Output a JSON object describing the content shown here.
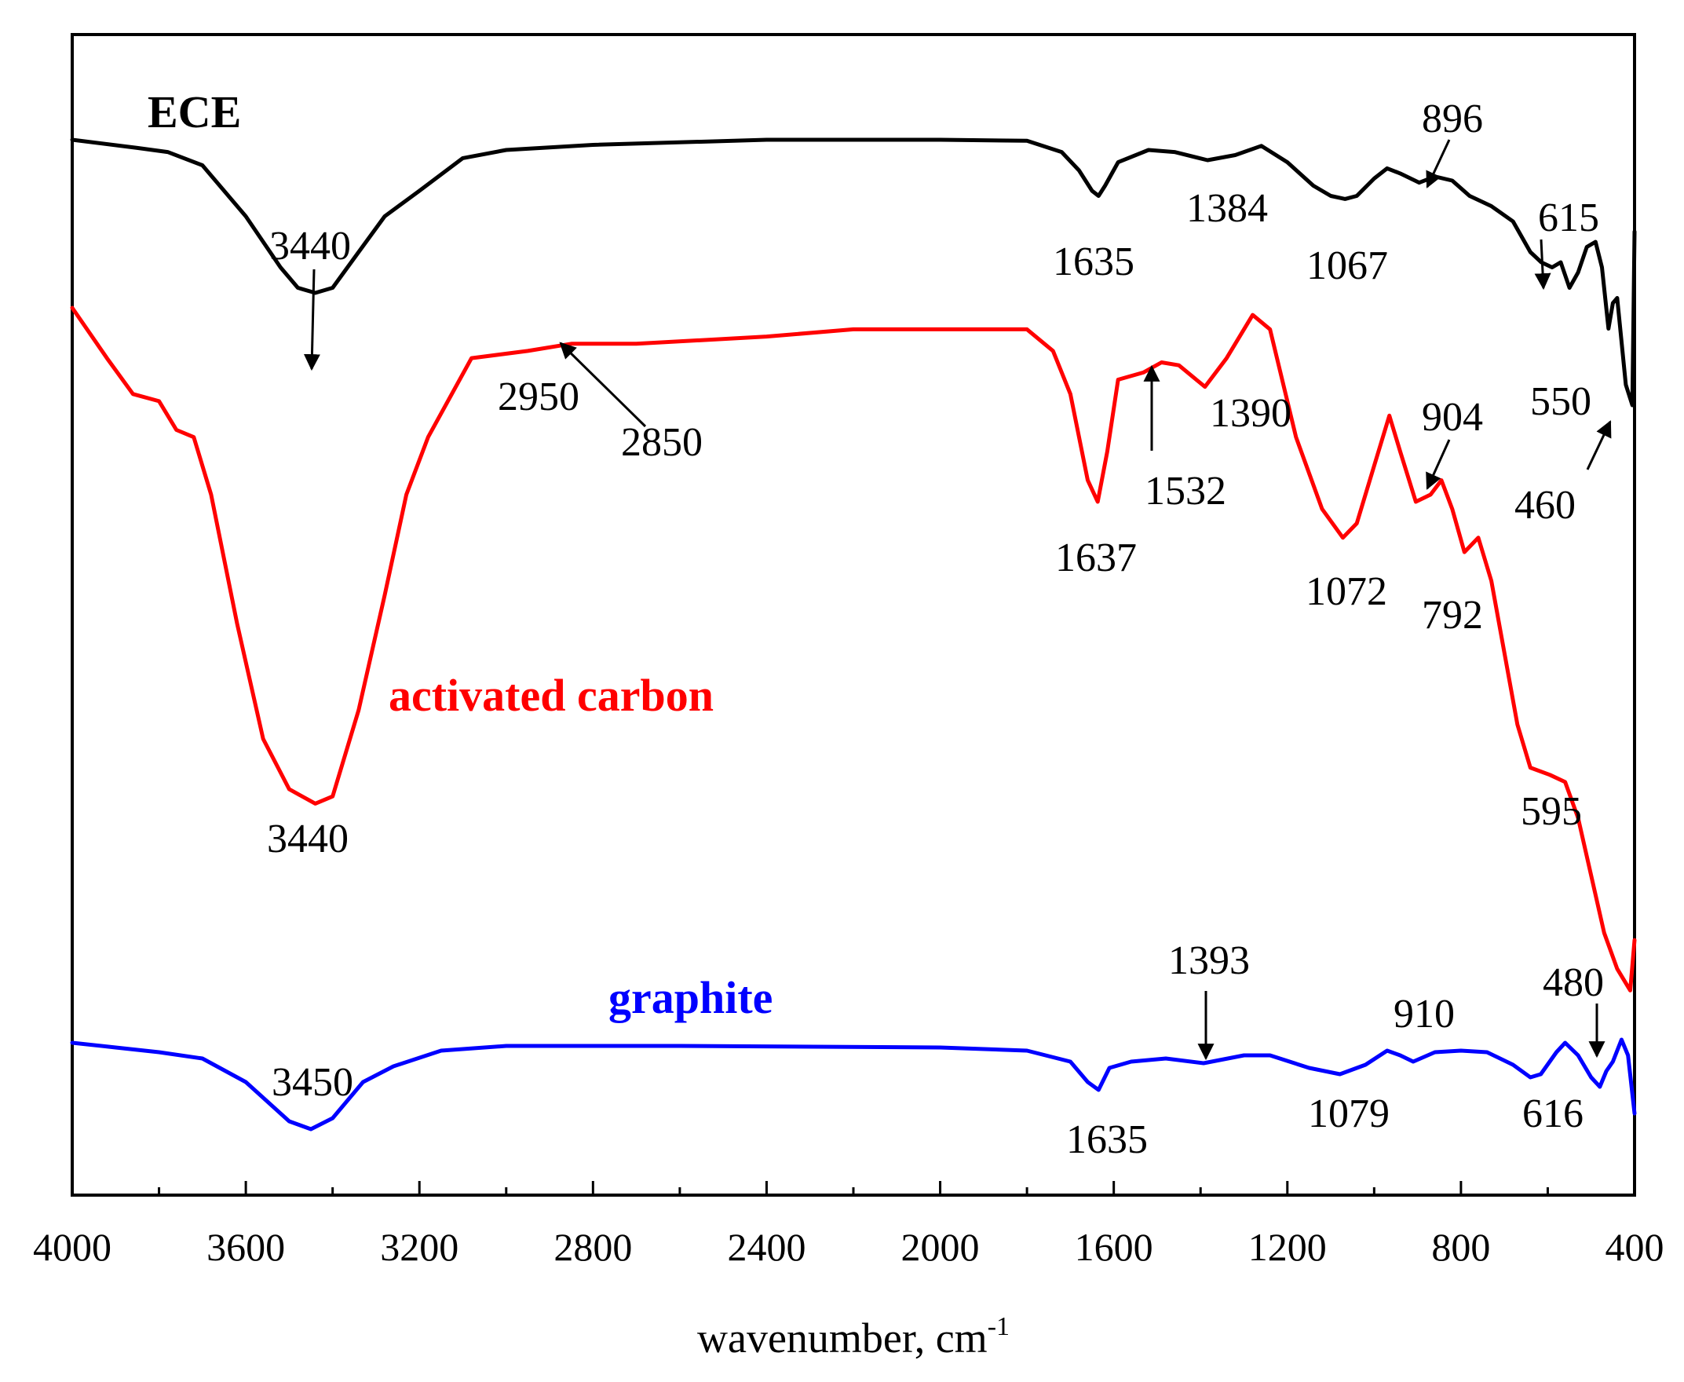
{
  "chart_data": {
    "type": "line",
    "title": "",
    "xlabel": "wavenumber, cm",
    "xlabel_superscript": "-1",
    "ylabel": "",
    "xlim": [
      4000,
      400
    ],
    "x_reversed": true,
    "y_ticks_shown": false,
    "grid": false,
    "xticks": [
      4000,
      3600,
      3200,
      2800,
      2400,
      2000,
      1600,
      1200,
      800,
      400
    ],
    "series": [
      {
        "name": "ECE",
        "color": "#000000",
        "points": [
          [
            4000,
            0.0
          ],
          [
            3850,
            -0.08
          ],
          [
            3780,
            -0.12
          ],
          [
            3700,
            -0.25
          ],
          [
            3600,
            -0.75
          ],
          [
            3520,
            -1.25
          ],
          [
            3480,
            -1.45
          ],
          [
            3440,
            -1.5
          ],
          [
            3400,
            -1.45
          ],
          [
            3340,
            -1.1
          ],
          [
            3280,
            -0.75
          ],
          [
            3200,
            -0.5
          ],
          [
            3100,
            -0.18
          ],
          [
            3000,
            -0.1
          ],
          [
            2800,
            -0.05
          ],
          [
            2400,
            0.0
          ],
          [
            2000,
            0.0
          ],
          [
            1800,
            -0.01
          ],
          [
            1720,
            -0.12
          ],
          [
            1680,
            -0.3
          ],
          [
            1650,
            -0.5
          ],
          [
            1635,
            -0.55
          ],
          [
            1620,
            -0.45
          ],
          [
            1590,
            -0.22
          ],
          [
            1520,
            -0.1
          ],
          [
            1460,
            -0.12
          ],
          [
            1384,
            -0.2
          ],
          [
            1320,
            -0.15
          ],
          [
            1260,
            -0.06
          ],
          [
            1200,
            -0.22
          ],
          [
            1140,
            -0.45
          ],
          [
            1100,
            -0.55
          ],
          [
            1067,
            -0.58
          ],
          [
            1040,
            -0.55
          ],
          [
            1000,
            -0.38
          ],
          [
            970,
            -0.28
          ],
          [
            940,
            -0.33
          ],
          [
            896,
            -0.42
          ],
          [
            860,
            -0.36
          ],
          [
            820,
            -0.4
          ],
          [
            780,
            -0.55
          ],
          [
            730,
            -0.65
          ],
          [
            680,
            -0.8
          ],
          [
            640,
            -1.1
          ],
          [
            615,
            -1.2
          ],
          [
            590,
            -1.25
          ],
          [
            570,
            -1.2
          ],
          [
            550,
            -1.45
          ],
          [
            530,
            -1.3
          ],
          [
            510,
            -1.05
          ],
          [
            490,
            -1.0
          ],
          [
            475,
            -1.25
          ],
          [
            460,
            -1.85
          ],
          [
            450,
            -1.6
          ],
          [
            440,
            -1.55
          ],
          [
            420,
            -2.4
          ],
          [
            405,
            -2.6
          ],
          [
            400,
            -0.9
          ]
        ]
      },
      {
        "name": "activated carbon",
        "color": "#ff0000",
        "points": [
          [
            4000,
            0.0
          ],
          [
            3920,
            -0.35
          ],
          [
            3860,
            -0.6
          ],
          [
            3800,
            -0.65
          ],
          [
            3760,
            -0.85
          ],
          [
            3720,
            -0.9
          ],
          [
            3680,
            -1.3
          ],
          [
            3620,
            -2.2
          ],
          [
            3560,
            -3.0
          ],
          [
            3500,
            -3.35
          ],
          [
            3440,
            -3.45
          ],
          [
            3400,
            -3.4
          ],
          [
            3340,
            -2.8
          ],
          [
            3280,
            -2.0
          ],
          [
            3230,
            -1.3
          ],
          [
            3180,
            -0.9
          ],
          [
            3080,
            -0.35
          ],
          [
            2950,
            -0.3
          ],
          [
            2850,
            -0.25
          ],
          [
            2700,
            -0.25
          ],
          [
            2400,
            -0.2
          ],
          [
            2200,
            -0.15
          ],
          [
            2000,
            -0.15
          ],
          [
            1800,
            -0.15
          ],
          [
            1740,
            -0.3
          ],
          [
            1700,
            -0.6
          ],
          [
            1660,
            -1.2
          ],
          [
            1637,
            -1.35
          ],
          [
            1615,
            -1.0
          ],
          [
            1590,
            -0.5
          ],
          [
            1532,
            -0.45
          ],
          [
            1490,
            -0.38
          ],
          [
            1450,
            -0.4
          ],
          [
            1390,
            -0.55
          ],
          [
            1340,
            -0.35
          ],
          [
            1280,
            -0.05
          ],
          [
            1240,
            -0.15
          ],
          [
            1180,
            -0.9
          ],
          [
            1120,
            -1.4
          ],
          [
            1072,
            -1.6
          ],
          [
            1040,
            -1.5
          ],
          [
            1000,
            -1.1
          ],
          [
            965,
            -0.75
          ],
          [
            940,
            -1.0
          ],
          [
            904,
            -1.35
          ],
          [
            870,
            -1.3
          ],
          [
            845,
            -1.2
          ],
          [
            820,
            -1.4
          ],
          [
            792,
            -1.7
          ],
          [
            760,
            -1.6
          ],
          [
            730,
            -1.9
          ],
          [
            700,
            -2.4
          ],
          [
            670,
            -2.9
          ],
          [
            640,
            -3.2
          ],
          [
            595,
            -3.25
          ],
          [
            560,
            -3.3
          ],
          [
            530,
            -3.55
          ],
          [
            500,
            -3.95
          ],
          [
            470,
            -4.35
          ],
          [
            440,
            -4.6
          ],
          [
            410,
            -4.75
          ],
          [
            400,
            -4.4
          ]
        ]
      },
      {
        "name": "graphite",
        "color": "#0000ff",
        "points": [
          [
            4000,
            0.0
          ],
          [
            3900,
            -0.03
          ],
          [
            3800,
            -0.06
          ],
          [
            3700,
            -0.1
          ],
          [
            3600,
            -0.25
          ],
          [
            3500,
            -0.5
          ],
          [
            3450,
            -0.55
          ],
          [
            3400,
            -0.48
          ],
          [
            3330,
            -0.25
          ],
          [
            3260,
            -0.15
          ],
          [
            3150,
            -0.05
          ],
          [
            3000,
            -0.02
          ],
          [
            2600,
            -0.02
          ],
          [
            2000,
            -0.03
          ],
          [
            1800,
            -0.05
          ],
          [
            1700,
            -0.12
          ],
          [
            1660,
            -0.25
          ],
          [
            1635,
            -0.3
          ],
          [
            1610,
            -0.16
          ],
          [
            1560,
            -0.12
          ],
          [
            1480,
            -0.1
          ],
          [
            1393,
            -0.13
          ],
          [
            1300,
            -0.08
          ],
          [
            1240,
            -0.08
          ],
          [
            1150,
            -0.16
          ],
          [
            1079,
            -0.2
          ],
          [
            1020,
            -0.14
          ],
          [
            970,
            -0.05
          ],
          [
            940,
            -0.08
          ],
          [
            910,
            -0.12
          ],
          [
            860,
            -0.06
          ],
          [
            800,
            -0.05
          ],
          [
            740,
            -0.06
          ],
          [
            680,
            -0.14
          ],
          [
            640,
            -0.22
          ],
          [
            616,
            -0.2
          ],
          [
            580,
            -0.06
          ],
          [
            560,
            -0.0
          ],
          [
            530,
            -0.08
          ],
          [
            500,
            -0.22
          ],
          [
            480,
            -0.28
          ],
          [
            465,
            -0.18
          ],
          [
            450,
            -0.12
          ],
          [
            430,
            0.02
          ],
          [
            415,
            -0.08
          ],
          [
            400,
            -0.45
          ]
        ]
      }
    ],
    "series_labels": [
      {
        "series": "ECE",
        "text": "ECE",
        "color": "#000000"
      },
      {
        "series": "activated carbon",
        "text": "activated carbon",
        "color": "#ff0000"
      },
      {
        "series": "graphite",
        "text": "graphite",
        "color": "#0000ff"
      }
    ],
    "annotations": [
      {
        "series": "ECE",
        "x": 3440,
        "text": "3440",
        "arrow": true
      },
      {
        "series": "ECE",
        "x": 1635,
        "text": "1635",
        "arrow": false
      },
      {
        "series": "ECE",
        "x": 1384,
        "text": "1384",
        "arrow": false
      },
      {
        "series": "ECE",
        "x": 1067,
        "text": "1067",
        "arrow": false
      },
      {
        "series": "ECE",
        "x": 896,
        "text": "896",
        "arrow": true
      },
      {
        "series": "ECE",
        "x": 615,
        "text": "615",
        "arrow": true
      },
      {
        "series": "ECE",
        "x": 550,
        "text": "550",
        "arrow": false
      },
      {
        "series": "ECE",
        "x": 460,
        "text": "460",
        "arrow": true
      },
      {
        "series": "activated carbon",
        "x": 3440,
        "text": "3440",
        "arrow": false
      },
      {
        "series": "activated carbon",
        "x": 2950,
        "text": "2950",
        "arrow": false
      },
      {
        "series": "activated carbon",
        "x": 2850,
        "text": "2850",
        "arrow": true
      },
      {
        "series": "activated carbon",
        "x": 1637,
        "text": "1637",
        "arrow": false
      },
      {
        "series": "activated carbon",
        "x": 1532,
        "text": "1532",
        "arrow": true
      },
      {
        "series": "activated carbon",
        "x": 1390,
        "text": "1390",
        "arrow": false
      },
      {
        "series": "activated carbon",
        "x": 1072,
        "text": "1072",
        "arrow": false
      },
      {
        "series": "activated carbon",
        "x": 904,
        "text": "904",
        "arrow": true
      },
      {
        "series": "activated carbon",
        "x": 792,
        "text": "792",
        "arrow": false
      },
      {
        "series": "activated carbon",
        "x": 595,
        "text": "595",
        "arrow": false
      },
      {
        "series": "graphite",
        "x": 3450,
        "text": "3450",
        "arrow": false
      },
      {
        "series": "graphite",
        "x": 1635,
        "text": "1635",
        "arrow": false
      },
      {
        "series": "graphite",
        "x": 1393,
        "text": "1393",
        "arrow": true
      },
      {
        "series": "graphite",
        "x": 1079,
        "text": "1079",
        "arrow": false
      },
      {
        "series": "graphite",
        "x": 910,
        "text": "910",
        "arrow": false
      },
      {
        "series": "graphite",
        "x": 616,
        "text": "616",
        "arrow": false
      },
      {
        "series": "graphite",
        "x": 480,
        "text": "480",
        "arrow": true
      }
    ]
  }
}
